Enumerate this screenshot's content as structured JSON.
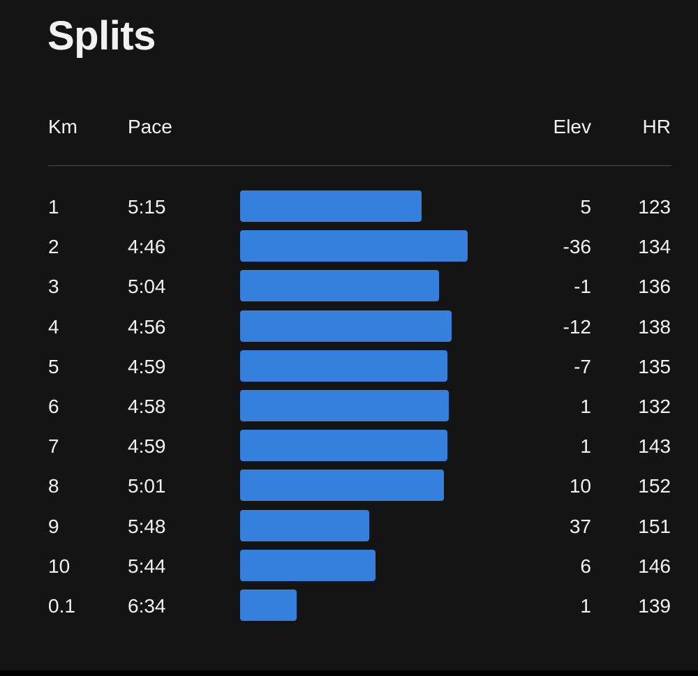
{
  "title": "Splits",
  "headers": {
    "km": "Km",
    "pace": "Pace",
    "elev": "Elev",
    "hr": "HR"
  },
  "colors": {
    "background": "#141414",
    "bar": "#3580dc",
    "text": "#f2f2f2",
    "divider": "#4a4a4a"
  },
  "splits": [
    {
      "km": "1",
      "pace": "5:15",
      "elev": "5",
      "hr": "123"
    },
    {
      "km": "2",
      "pace": "4:46",
      "elev": "-36",
      "hr": "134"
    },
    {
      "km": "3",
      "pace": "5:04",
      "elev": "-1",
      "hr": "136"
    },
    {
      "km": "4",
      "pace": "4:56",
      "elev": "-12",
      "hr": "138"
    },
    {
      "km": "5",
      "pace": "4:59",
      "elev": "-7",
      "hr": "135"
    },
    {
      "km": "6",
      "pace": "4:58",
      "elev": "1",
      "hr": "132"
    },
    {
      "km": "7",
      "pace": "4:59",
      "elev": "1",
      "hr": "143"
    },
    {
      "km": "8",
      "pace": "5:01",
      "elev": "10",
      "hr": "152"
    },
    {
      "km": "9",
      "pace": "5:48",
      "elev": "37",
      "hr": "151"
    },
    {
      "km": "10",
      "pace": "5:44",
      "elev": "6",
      "hr": "146"
    },
    {
      "km": "0.1",
      "pace": "6:34",
      "elev": "1",
      "hr": "139"
    }
  ]
}
